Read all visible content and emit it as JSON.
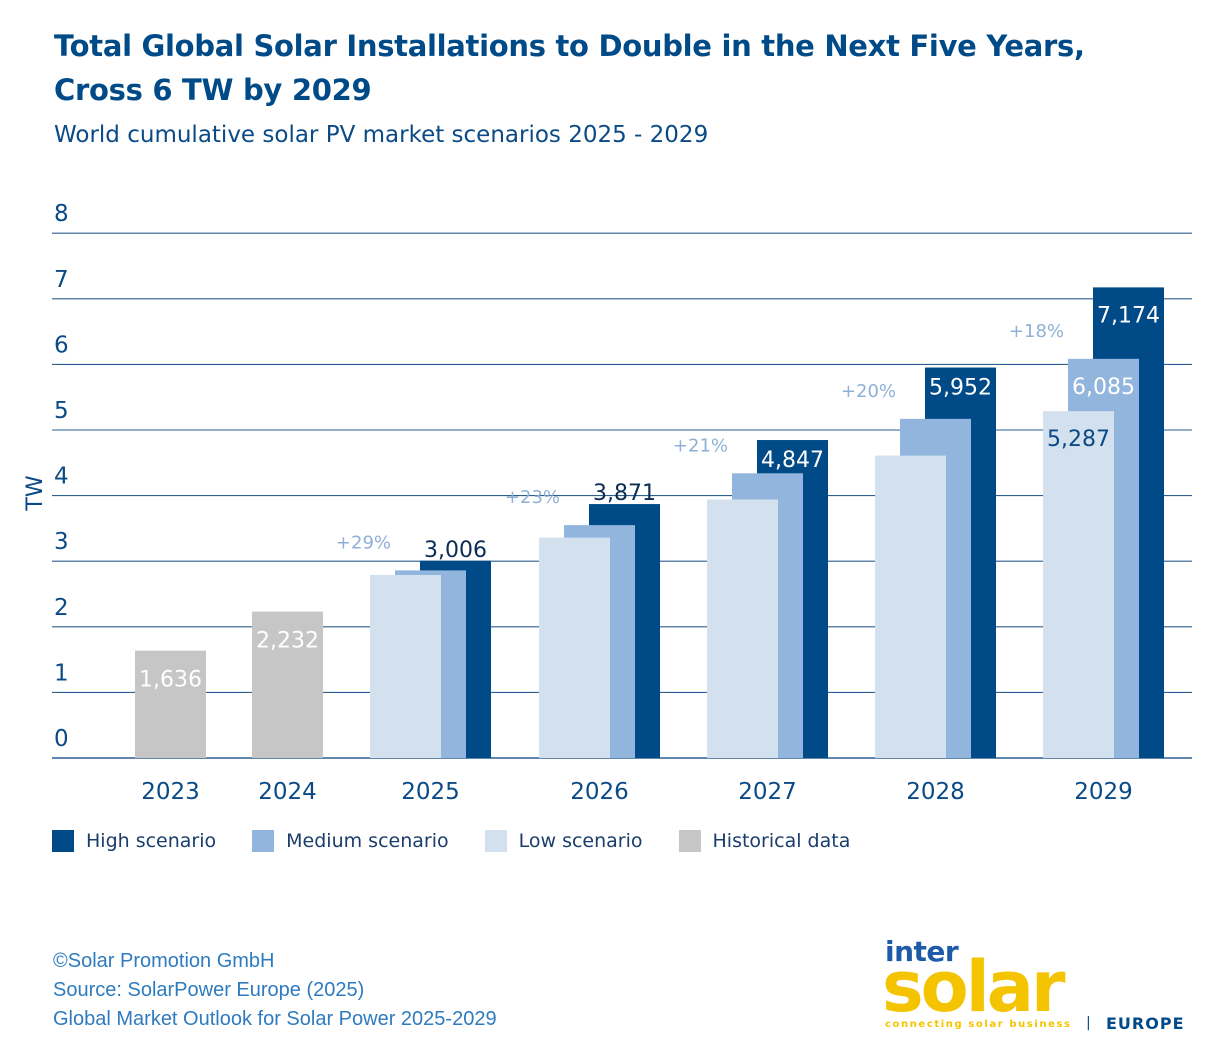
{
  "title": "Total Global Solar Installations to Double in the Next Five Years, Cross 6 TW by 2029",
  "subtitle": "World cumulative solar PV market scenarios 2025 - 2029",
  "chart_data": {
    "type": "bar",
    "ylabel": "TW",
    "ylim": [
      0,
      8
    ],
    "yticks": [
      "0",
      "1",
      "2",
      "3",
      "4",
      "5",
      "6",
      "7",
      "8"
    ],
    "grid": true,
    "legend_position": "bottom",
    "colors": {
      "high": "#004a87",
      "medium": "#91b5dd",
      "low": "#d3e0ee",
      "historical": "#c6c6c6"
    },
    "historical": [
      {
        "year": "2023",
        "value": 1.636,
        "label": "1,636"
      },
      {
        "year": "2024",
        "value": 2.232,
        "label": "2,232"
      }
    ],
    "scenarios": [
      {
        "year": "2025",
        "low": 2.79,
        "medium": 2.86,
        "high": 3.006,
        "label": "3,006",
        "label_series": "high",
        "growth": "+29%"
      },
      {
        "year": "2026",
        "low": 3.36,
        "medium": 3.55,
        "high": 3.871,
        "label": "3,871",
        "label_series": "high",
        "growth": "+23%"
      },
      {
        "year": "2027",
        "low": 3.94,
        "medium": 4.34,
        "high": 4.847,
        "label": "4,847",
        "label_series": "high",
        "growth": "+21%"
      },
      {
        "year": "2028",
        "low": 4.61,
        "medium": 5.17,
        "high": 5.952,
        "label": "5,952",
        "label_series": "high",
        "growth": "+20%"
      },
      {
        "year": "2029",
        "low": 5.287,
        "medium": 6.085,
        "high": 7.174,
        "labels": [
          {
            "series": "low",
            "text": "5,287"
          },
          {
            "series": "medium",
            "text": "6,085"
          },
          {
            "series": "high",
            "text": "7,174"
          }
        ],
        "growth": "+18%"
      }
    ]
  },
  "legend": [
    {
      "label": "High scenario",
      "color": "#004a87"
    },
    {
      "label": "Medium scenario",
      "color": "#91b5dd"
    },
    {
      "label": "Low scenario",
      "color": "#d3e0ee"
    },
    {
      "label": "Historical data",
      "color": "#c6c6c6"
    }
  ],
  "footer": {
    "copyright": "©Solar Promotion GmbH",
    "source": "Source: SolarPower Europe (2025)",
    "report": "Global Market Outlook for Solar Power 2025-2029"
  },
  "logo": {
    "inter": "inter",
    "solar": "solar",
    "tagline": "connecting solar business",
    "separator": "|",
    "region": "EUROPE"
  }
}
